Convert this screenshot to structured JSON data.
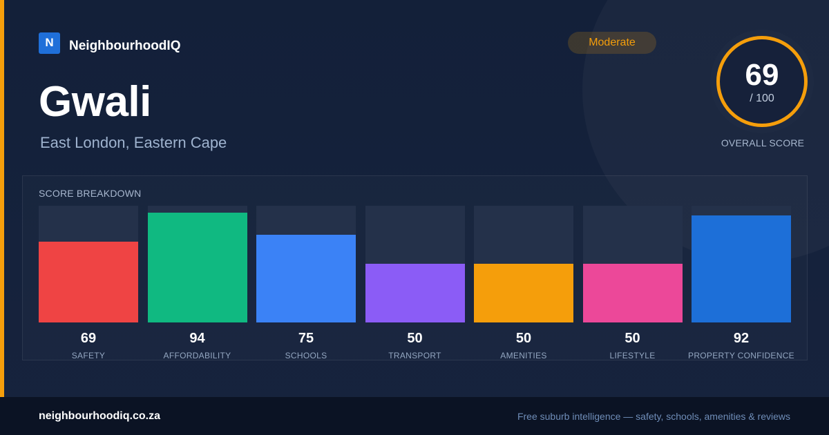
{
  "brand": {
    "mark": "N",
    "name": "NeighbourhoodIQ"
  },
  "suburb": {
    "name": "Gwali",
    "location": "East London, Eastern Cape"
  },
  "badge": {
    "label": "Moderate"
  },
  "overall": {
    "score": "69",
    "max": "/ 100",
    "caption": "OVERALL SCORE"
  },
  "breakdown": {
    "title": "SCORE BREAKDOWN"
  },
  "colors": {
    "accent": "#f59e0b",
    "brand": "#1f6fd9",
    "safety": "#ef4444",
    "affordability": "#10b981",
    "schools": "#3b82f6",
    "transport": "#8b5cf6",
    "amenities": "#f59e0b",
    "lifestyle": "#ec4899",
    "property_confidence": "#1d6fd8"
  },
  "chart_data": {
    "type": "bar",
    "title": "SCORE BREAKDOWN",
    "categories": [
      "SAFETY",
      "AFFORDABILITY",
      "SCHOOLS",
      "TRANSPORT",
      "AMENITIES",
      "LIFESTYLE",
      "PROPERTY CONFIDENCE"
    ],
    "values": [
      69,
      94,
      75,
      50,
      50,
      50,
      92
    ],
    "value_labels": [
      "69",
      "94",
      "75",
      "50",
      "50",
      "50",
      "92"
    ],
    "colors": [
      "#ef4444",
      "#10b981",
      "#3b82f6",
      "#8b5cf6",
      "#f59e0b",
      "#ec4899",
      "#1d6fd8"
    ],
    "ylim": [
      0,
      100
    ],
    "grid": false
  },
  "footer": {
    "url": "neighbourhoodiq.co.za",
    "tagline": "Free suburb intelligence — safety, schools, amenities & reviews"
  }
}
